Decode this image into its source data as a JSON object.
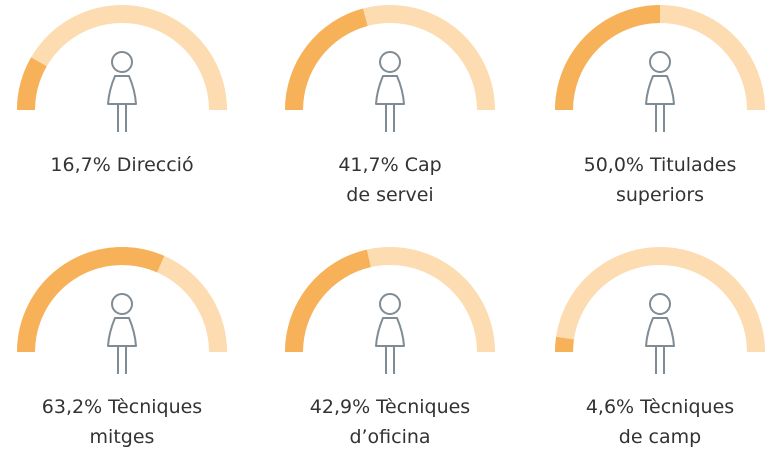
{
  "chart_data": {
    "type": "gauge",
    "values": [
      16.7,
      41.7,
      50.0,
      63.2,
      42.9,
      4.6
    ],
    "value_labels": [
      "16,7%",
      "41,7%",
      "50,0%",
      "63,2%",
      "42,9%",
      "4,6%"
    ],
    "label_lines": [
      [
        "Direcció"
      ],
      [
        "Cap",
        "de servei"
      ],
      [
        "Titulades",
        "superiors"
      ],
      [
        "Tècniques",
        "mitges"
      ],
      [
        "Tècniques",
        "d’oficina"
      ],
      [
        "Tècniques",
        "de camp"
      ]
    ],
    "ylim": [
      0,
      100
    ],
    "color": "#f6b159",
    "track_color": "#fcdcb0"
  }
}
